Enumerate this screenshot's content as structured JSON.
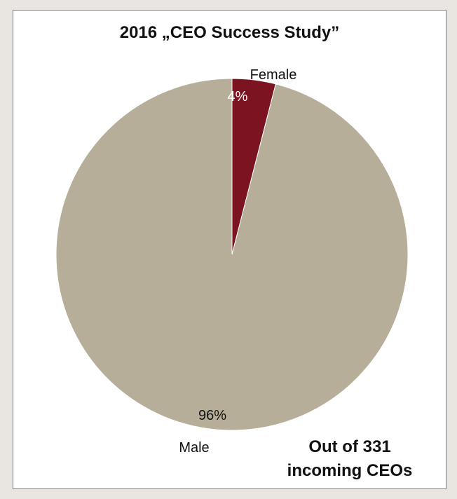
{
  "chart_data": {
    "type": "pie",
    "title": "2016 „CEO Success Study”",
    "slices": [
      {
        "label": "Female",
        "value": 4,
        "value_label": "4%",
        "color": "#7b1420"
      },
      {
        "label": "Male",
        "value": 96,
        "value_label": "96%",
        "color": "#b7ae99"
      }
    ]
  },
  "footnote": {
    "line1": "Out of 331",
    "line2": "incoming CEOs"
  },
  "colors": {
    "background": "#e9e6e1",
    "panel": "#ffffff",
    "female": "#7b1420",
    "male": "#b7ae99"
  }
}
